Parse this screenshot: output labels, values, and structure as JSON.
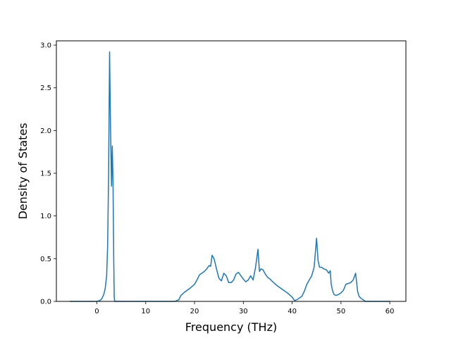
{
  "chart_data": {
    "type": "line",
    "title": "",
    "xlabel": "Frequency (THz)",
    "ylabel": "Density of States",
    "xlim": [
      -8.3,
      63.3
    ],
    "ylim": [
      0,
      3.05
    ],
    "xticks": [
      0,
      10,
      20,
      30,
      40,
      50,
      60
    ],
    "yticks": [
      0.0,
      0.5,
      1.0,
      1.5,
      2.0,
      2.5,
      3.0
    ],
    "xtick_labels": [
      "0",
      "10",
      "20",
      "30",
      "40",
      "50",
      "60"
    ],
    "ytick_labels": [
      "0.0",
      "0.5",
      "1.0",
      "1.5",
      "2.0",
      "2.5",
      "3.0"
    ],
    "grid": false,
    "legend": "none",
    "color": "#1f77b4",
    "series": [
      {
        "x": [
          -5.5,
          0.0,
          0.6,
          1.0,
          1.4,
          1.7,
          2.0,
          2.2,
          2.4,
          2.6,
          2.8,
          3.0,
          3.15,
          3.3,
          3.45,
          3.55,
          3.65,
          4.0,
          10.0,
          16.0,
          16.8,
          17.2,
          18.0,
          19.0,
          20.0,
          20.5,
          21.0,
          21.5,
          22.0,
          22.5,
          23.0,
          23.3,
          23.6,
          24.0,
          24.5,
          25.0,
          25.5,
          26.0,
          26.5,
          27.0,
          27.5,
          28.0,
          28.5,
          29.0,
          29.5,
          30.0,
          30.5,
          31.0,
          31.5,
          32.0,
          32.5,
          33.0,
          33.3,
          33.6,
          34.0,
          34.5,
          35.0,
          35.5,
          36.0,
          37.0,
          38.0,
          39.0,
          40.0,
          40.5,
          41.0,
          42.0,
          42.5,
          43.0,
          43.5,
          44.0,
          44.5,
          45.0,
          45.3,
          45.6,
          46.0,
          46.5,
          47.0,
          47.5,
          47.8,
          48.0,
          48.3,
          48.6,
          49.0,
          49.5,
          50.0,
          50.5,
          51.0,
          51.5,
          52.0,
          52.5,
          53.0,
          53.4,
          53.7,
          54.0,
          54.5,
          55.0,
          56.0,
          60.0
        ],
        "y": [
          0,
          0,
          0.01,
          0.03,
          0.08,
          0.15,
          0.3,
          0.65,
          1.5,
          2.92,
          2.0,
          1.35,
          1.82,
          1.4,
          0.5,
          0.05,
          0,
          0,
          0,
          0,
          0.02,
          0.07,
          0.11,
          0.15,
          0.2,
          0.25,
          0.31,
          0.33,
          0.35,
          0.38,
          0.42,
          0.41,
          0.54,
          0.5,
          0.38,
          0.27,
          0.24,
          0.33,
          0.3,
          0.22,
          0.22,
          0.25,
          0.32,
          0.34,
          0.3,
          0.26,
          0.23,
          0.25,
          0.3,
          0.25,
          0.4,
          0.61,
          0.35,
          0.38,
          0.37,
          0.32,
          0.28,
          0.26,
          0.23,
          0.18,
          0.14,
          0.1,
          0.05,
          0.01,
          0.02,
          0.06,
          0.12,
          0.2,
          0.25,
          0.3,
          0.4,
          0.74,
          0.48,
          0.4,
          0.4,
          0.38,
          0.37,
          0.33,
          0.36,
          0.2,
          0.12,
          0.08,
          0.07,
          0.08,
          0.1,
          0.13,
          0.2,
          0.21,
          0.22,
          0.25,
          0.33,
          0.12,
          0.06,
          0.04,
          0.02,
          0,
          0,
          0
        ]
      }
    ]
  }
}
